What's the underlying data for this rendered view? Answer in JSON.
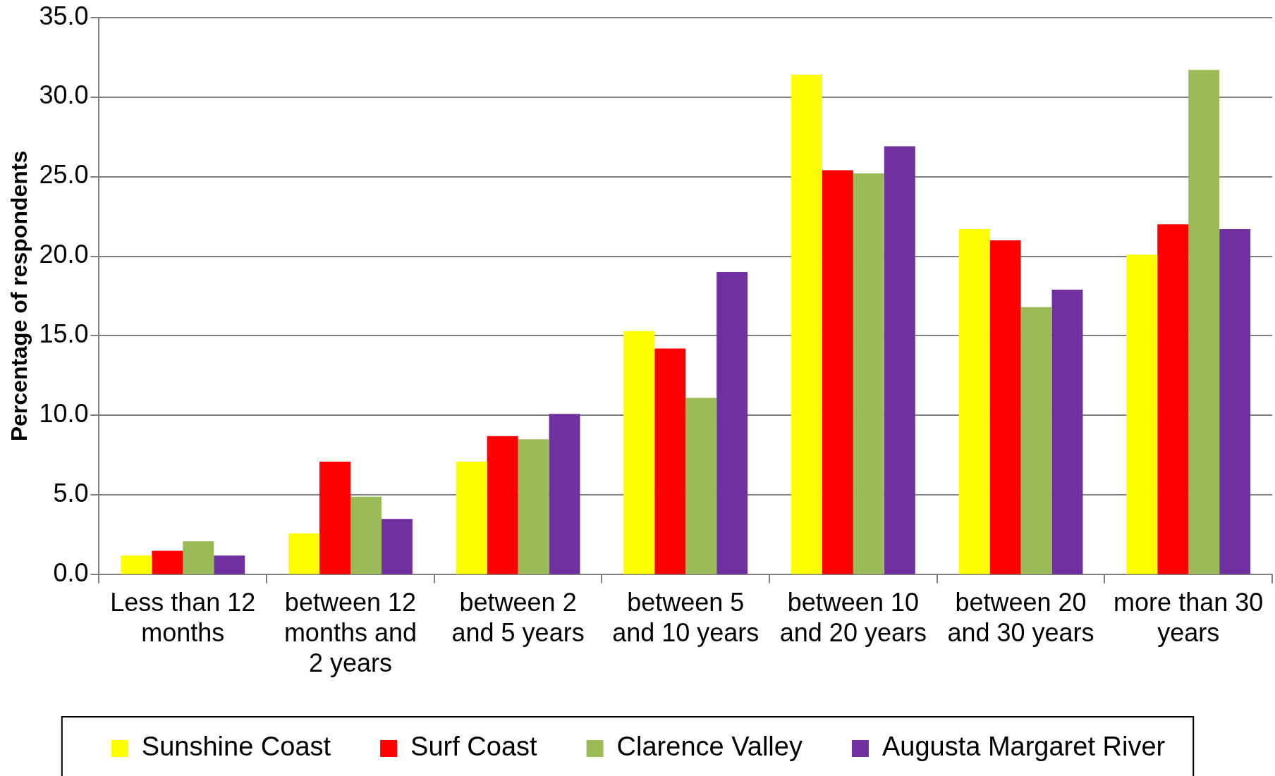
{
  "chart_data": {
    "type": "bar",
    "ylabel": "Percentage of respondents",
    "categories": [
      "Less than 12 months",
      "between 12 months and 2 years",
      "between 2 and 5 years",
      "between 5 and 10 years",
      "between 10 and 20 years",
      "between 20 and 30 years",
      "more than 30 years"
    ],
    "series": [
      {
        "name": "Sunshine Coast",
        "color": "#ffff00",
        "values": [
          1.2,
          2.6,
          7.1,
          15.3,
          31.4,
          21.7,
          20.1
        ]
      },
      {
        "name": "Surf Coast",
        "color": "#ff0000",
        "values": [
          1.5,
          7.1,
          8.7,
          14.2,
          25.4,
          21.0,
          22.0
        ]
      },
      {
        "name": "Clarence Valley",
        "color": "#9bbb59",
        "values": [
          2.1,
          4.9,
          8.5,
          11.1,
          25.2,
          16.8,
          31.7
        ]
      },
      {
        "name": "Augusta Margaret River",
        "color": "#7030a0",
        "values": [
          1.2,
          3.5,
          10.1,
          19.0,
          26.9,
          17.9,
          21.7
        ]
      }
    ],
    "ylim": [
      0,
      35
    ],
    "yticks": [
      {
        "value": 0,
        "label": "0.0"
      },
      {
        "value": 5,
        "label": "5.0"
      },
      {
        "value": 10,
        "label": "10.0"
      },
      {
        "value": 15,
        "label": "15.0"
      },
      {
        "value": 20,
        "label": "20.0"
      },
      {
        "value": 25,
        "label": "25.0"
      },
      {
        "value": 30,
        "label": "30.0"
      },
      {
        "value": 35,
        "label": "35.0"
      }
    ],
    "grid": "y",
    "legend": "bottom"
  }
}
